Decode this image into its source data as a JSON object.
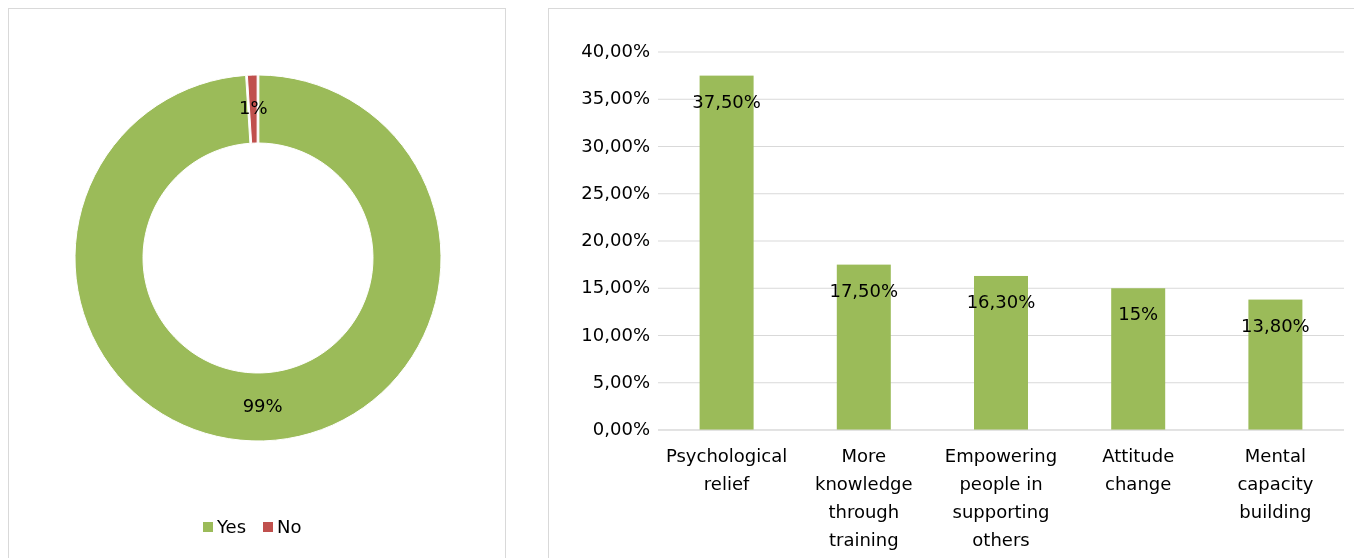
{
  "chart_data": [
    {
      "type": "donut",
      "categories": [
        "Yes",
        "No"
      ],
      "values": [
        99,
        1
      ],
      "colors": [
        "#9bbb59",
        "#c0504d"
      ],
      "value_labels": [
        "99%",
        "1%"
      ],
      "legend": "bottom"
    },
    {
      "type": "bar",
      "categories": [
        "Psychological relief",
        "More knowledge through training",
        "Empowering people in supporting others",
        "Attitude change",
        "Mental capacity building"
      ],
      "values": [
        37.5,
        17.5,
        16.3,
        15,
        13.8
      ],
      "color": "#9bbb59",
      "value_labels": [
        "37,50%",
        "17,50%",
        "16,30%",
        "15%",
        "13,80%"
      ],
      "ylim": [
        0,
        40
      ],
      "yticks": [
        {
          "value": 0,
          "label": "0,00%"
        },
        {
          "value": 5,
          "label": "5,00%"
        },
        {
          "value": 10,
          "label": "10,00%"
        },
        {
          "value": 15,
          "label": "15,00%"
        },
        {
          "value": 20,
          "label": "20,00%"
        },
        {
          "value": 25,
          "label": "25,00%"
        },
        {
          "value": 30,
          "label": "30,00%"
        },
        {
          "value": 35,
          "label": "35,00%"
        },
        {
          "value": 40,
          "label": "40,00%"
        }
      ],
      "grid": "y"
    }
  ]
}
